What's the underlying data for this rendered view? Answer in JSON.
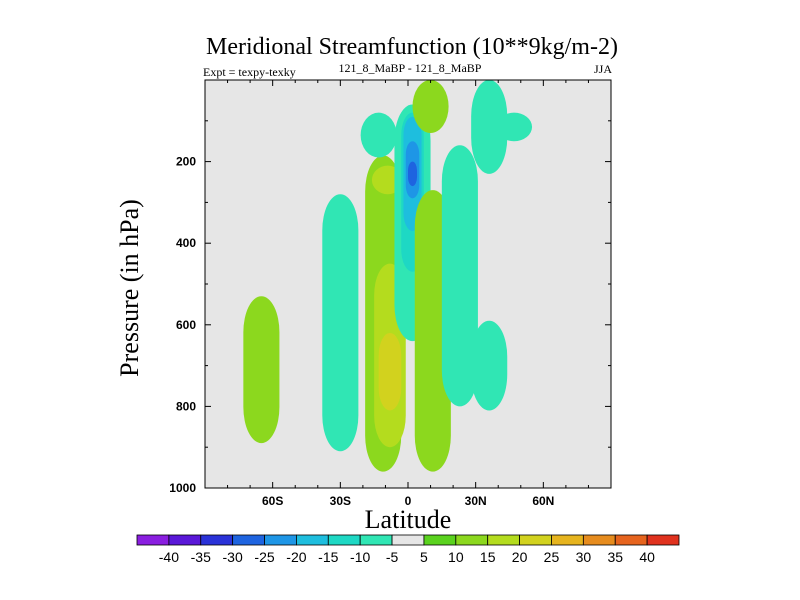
{
  "chart_data": {
    "type": "contour",
    "title": "Meridional Streamfunction (10**9kg/m-2)",
    "subtitle_left": "Expt = texpy-texky",
    "subtitle_center": "121_8_MaBP - 121_8_MaBP",
    "subtitle_right": "JJA",
    "xlabel": "Latitude",
    "ylabel": "Pressure (in hPa)",
    "xlim": [
      -90,
      90
    ],
    "ylim": [
      1000,
      0
    ],
    "x_ticks": [
      {
        "value": -60,
        "label": "60S"
      },
      {
        "value": -30,
        "label": "30S"
      },
      {
        "value": 0,
        "label": "0"
      },
      {
        "value": 30,
        "label": "30N"
      },
      {
        "value": 60,
        "label": "60N"
      }
    ],
    "y_ticks": [
      {
        "value": 200,
        "label": "200"
      },
      {
        "value": 400,
        "label": "400"
      },
      {
        "value": 600,
        "label": "600"
      },
      {
        "value": 800,
        "label": "800"
      },
      {
        "value": 1000,
        "label": "1000"
      }
    ],
    "background_color": "#e6e6e6",
    "colorbar": {
      "labels": [
        "-40",
        "-35",
        "-30",
        "-25",
        "-20",
        "-15",
        "-10",
        "-5",
        "5",
        "10",
        "15",
        "20",
        "25",
        "30",
        "35",
        "40"
      ],
      "colors": [
        "#8a1ee0",
        "#5a18d8",
        "#2a32d8",
        "#1e64e0",
        "#1e96e6",
        "#1ebede",
        "#1ed8c4",
        "#30e6b4",
        "#e6e6e6",
        "#5ad21e",
        "#8cd81e",
        "#b4dc1e",
        "#d2d21e",
        "#e6b41e",
        "#e68c1e",
        "#e6641e",
        "#e0321e"
      ]
    },
    "regions": [
      {
        "level": 10,
        "lat": -65,
        "p_top": 530,
        "p_bot": 890
      },
      {
        "level": -5,
        "lat": -30,
        "p_top": 280,
        "p_bot": 910
      },
      {
        "level": 10,
        "lat": -11,
        "p_top": 185,
        "p_bot": 960
      },
      {
        "level": 15,
        "lat": -8,
        "p_top": 450,
        "p_bot": 900
      },
      {
        "level": 20,
        "lat": -8,
        "p_top": 620,
        "p_bot": 810
      },
      {
        "level": 15,
        "lat": -9,
        "p_top": 210,
        "p_bot": 280
      },
      {
        "level": -5,
        "lat": 2,
        "p_top": 60,
        "p_bot": 640
      },
      {
        "level": -10,
        "lat": 2,
        "p_top": 80,
        "p_bot": 470
      },
      {
        "level": -15,
        "lat": 2,
        "p_top": 90,
        "p_bot": 370
      },
      {
        "level": -20,
        "lat": 2,
        "p_top": 150,
        "p_bot": 290
      },
      {
        "level": -25,
        "lat": 2,
        "p_top": 200,
        "p_bot": 260
      },
      {
        "level": -5,
        "lat": -13,
        "p_top": 80,
        "p_bot": 190
      },
      {
        "level": 10,
        "lat": 10,
        "p_top": 0,
        "p_bot": 130
      },
      {
        "level": 10,
        "lat": 11,
        "p_top": 270,
        "p_bot": 960
      },
      {
        "level": -5,
        "lat": 23,
        "p_top": 160,
        "p_bot": 800
      },
      {
        "level": -5,
        "lat": 36,
        "p_top": 0,
        "p_bot": 230
      },
      {
        "level": -5,
        "lat": 36,
        "p_top": 590,
        "p_bot": 810
      },
      {
        "level": -5,
        "lat": 47,
        "p_top": 80,
        "p_bot": 150
      }
    ]
  }
}
